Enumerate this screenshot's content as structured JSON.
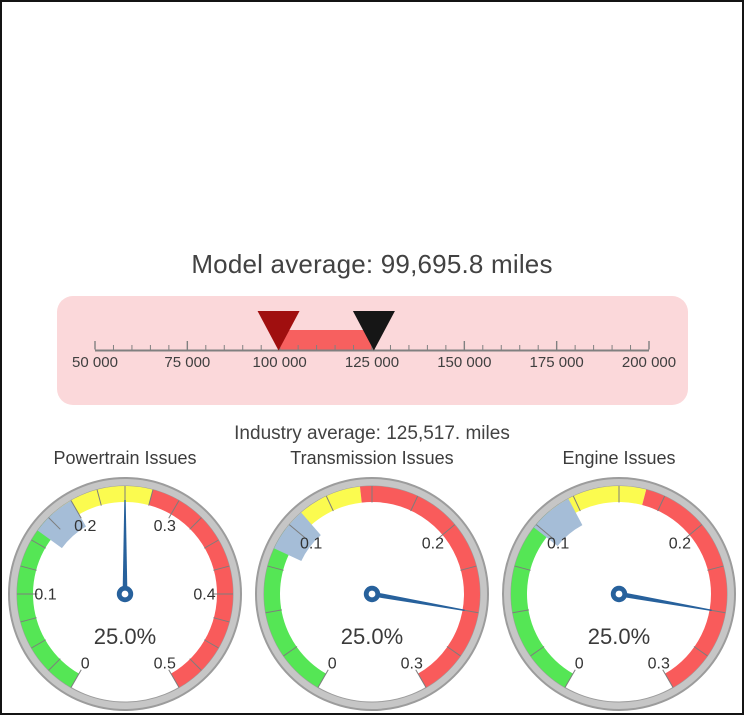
{
  "page": {
    "background": "#ffffff",
    "frame_border_color": "#141414"
  },
  "chart_data": [
    {
      "type": "bullet",
      "title": "Model average: 99,695.8 miles",
      "subtitle": "Industry average: 125,517. miles",
      "value": 99695.8,
      "target": 125517,
      "xlim": [
        50000,
        200000
      ],
      "major_tick_step": 25000,
      "minor_tick_step": 5000,
      "tick_labels": [
        "50 000",
        "75 000",
        "100 000",
        "125 000",
        "150 000",
        "175 000",
        "200 000"
      ],
      "range_bar": {
        "from": 99695.8,
        "to": 125517,
        "color": "#f7605f"
      },
      "value_marker": {
        "shape": "triangle-down",
        "color": "#a00f0f",
        "name": "model-average-marker"
      },
      "target_marker": {
        "shape": "triangle-down",
        "color": "#161616",
        "name": "industry-average-marker"
      },
      "panel_color": "#fbd8da",
      "axis_color": "#808080",
      "label_color": "#3f3f3f",
      "title_color": "#424242"
    },
    {
      "type": "gauge",
      "title": "Powertrain Issues",
      "value": 0.25,
      "value_label": "25.0%",
      "range": [
        0,
        0.5
      ],
      "start_angle": 240,
      "end_angle": -60,
      "major_tick_step": 0.1,
      "minor_tick_step": 0.025,
      "tick_labels": [
        "0",
        "0.1",
        "0.2",
        "0.3",
        "0.4",
        "0.5"
      ],
      "bands": [
        {
          "from": 0,
          "to": 0.18,
          "color": "#55e655"
        },
        {
          "from": 0.18,
          "to": 0.275,
          "color": "#fbfb4f"
        },
        {
          "from": 0.275,
          "to": 0.5,
          "color": "#f95b5b"
        }
      ],
      "marker": {
        "value": 0.18,
        "color": "#a5bdd7"
      },
      "needle_color": "#27619c",
      "rim_color": "#c6c6c6",
      "rim_edge_color": "#9c9c9c",
      "tick_color": "#7d7d7d",
      "label_color": "#333333"
    },
    {
      "type": "gauge",
      "title": "Transmission Issues",
      "value": 0.25,
      "value_label": "25.0%",
      "range": [
        0,
        0.3
      ],
      "start_angle": 240,
      "end_angle": -60,
      "major_tick_step": 0.1,
      "minor_tick_step": 0.025,
      "tick_labels": [
        "0",
        "0.1",
        "0.2",
        "0.3"
      ],
      "bands": [
        {
          "from": 0,
          "to": 0.097,
          "color": "#55e655"
        },
        {
          "from": 0.097,
          "to": 0.1436,
          "color": "#fbfb4f"
        },
        {
          "from": 0.1436,
          "to": 0.3,
          "color": "#f95b5b"
        }
      ],
      "marker": {
        "value": 0.097,
        "color": "#a5bdd7"
      },
      "needle_color": "#27619c",
      "rim_color": "#c6c6c6",
      "rim_edge_color": "#9c9c9c",
      "tick_color": "#7d7d7d",
      "label_color": "#333333"
    },
    {
      "type": "gauge",
      "title": "Engine Issues",
      "value": 0.25,
      "value_label": "25.0%",
      "range": [
        0,
        0.3
      ],
      "start_angle": 240,
      "end_angle": -60,
      "major_tick_step": 0.1,
      "minor_tick_step": 0.025,
      "tick_labels": [
        "0",
        "0.1",
        "0.2",
        "0.3"
      ],
      "bands": [
        {
          "from": 0,
          "to": 0.11,
          "color": "#55e655"
        },
        {
          "from": 0.11,
          "to": 0.1646,
          "color": "#fbfb4f"
        },
        {
          "from": 0.1646,
          "to": 0.3,
          "color": "#f95b5b"
        }
      ],
      "marker": {
        "value": 0.11,
        "color": "#a5bdd7"
      },
      "needle_color": "#27619c",
      "rim_color": "#c6c6c6",
      "rim_edge_color": "#9c9c9c",
      "tick_color": "#7d7d7d",
      "label_color": "#333333"
    }
  ]
}
